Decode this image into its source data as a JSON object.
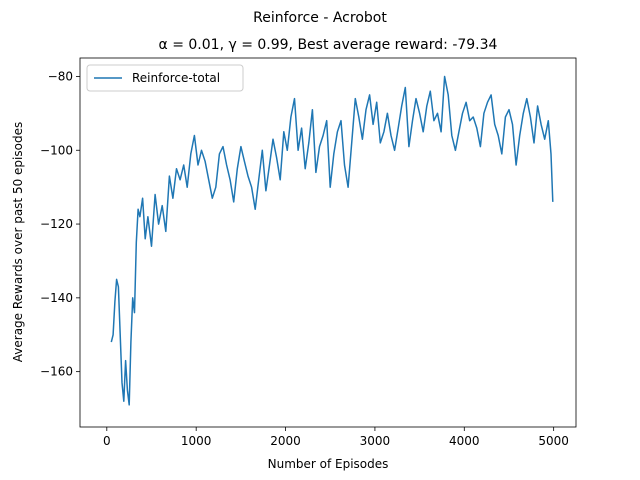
{
  "chart_data": {
    "type": "line",
    "suptitle": "Reinforce - Acrobot",
    "title": "α = 0.01, γ = 0.99,  Best average reward: -79.34",
    "xlabel": "Number of Episodes",
    "ylabel": "Average Rewards over past 50 episodes",
    "xlim": [
      -300,
      5250
    ],
    "ylim": [
      -175,
      -75
    ],
    "xticks": [
      0,
      1000,
      2000,
      3000,
      4000,
      5000
    ],
    "yticks": [
      -160,
      -140,
      -120,
      -100,
      -80
    ],
    "xtick_labels": [
      "0",
      "1000",
      "2000",
      "3000",
      "4000",
      "5000"
    ],
    "ytick_labels": [
      "−160",
      "−140",
      "−120",
      "−100",
      "−80"
    ],
    "grid": false,
    "legend_position": "top-left",
    "series": [
      {
        "name": "Reinforce-total",
        "color": "#1f77b4",
        "x": [
          50,
          70,
          90,
          110,
          130,
          150,
          170,
          190,
          210,
          230,
          250,
          270,
          290,
          310,
          330,
          350,
          370,
          400,
          430,
          460,
          500,
          540,
          580,
          620,
          660,
          700,
          740,
          780,
          820,
          860,
          900,
          940,
          980,
          1020,
          1060,
          1100,
          1140,
          1180,
          1220,
          1260,
          1300,
          1340,
          1380,
          1420,
          1460,
          1500,
          1540,
          1580,
          1620,
          1660,
          1700,
          1740,
          1780,
          1820,
          1860,
          1900,
          1940,
          1980,
          2020,
          2060,
          2100,
          2140,
          2180,
          2220,
          2260,
          2300,
          2340,
          2380,
          2420,
          2460,
          2500,
          2540,
          2580,
          2620,
          2660,
          2700,
          2740,
          2780,
          2820,
          2860,
          2900,
          2940,
          2980,
          3020,
          3060,
          3100,
          3140,
          3180,
          3220,
          3260,
          3300,
          3340,
          3380,
          3420,
          3460,
          3500,
          3540,
          3580,
          3620,
          3660,
          3700,
          3740,
          3780,
          3820,
          3860,
          3900,
          3940,
          3980,
          4020,
          4060,
          4100,
          4140,
          4180,
          4220,
          4260,
          4300,
          4340,
          4380,
          4420,
          4460,
          4500,
          4540,
          4580,
          4620,
          4660,
          4700,
          4740,
          4780,
          4820,
          4860,
          4900,
          4940,
          4970,
          4990
        ],
        "y": [
          -152,
          -150,
          -141,
          -135,
          -137,
          -150,
          -163,
          -168,
          -157,
          -165,
          -169,
          -152,
          -140,
          -144,
          -125,
          -116,
          -118,
          -113,
          -124,
          -118,
          -126,
          -112,
          -120,
          -115,
          -122,
          -107,
          -113,
          -105,
          -108,
          -104,
          -110,
          -101,
          -96,
          -104,
          -100,
          -103,
          -108,
          -113,
          -110,
          -101,
          -99,
          -104,
          -108,
          -114,
          -105,
          -99,
          -103,
          -107,
          -110,
          -116,
          -108,
          -100,
          -111,
          -104,
          -97,
          -102,
          -108,
          -95,
          -100,
          -91,
          -86,
          -100,
          -94,
          -105,
          -98,
          -89,
          -106,
          -99,
          -96,
          -92,
          -110,
          -101,
          -95,
          -92,
          -104,
          -110,
          -98,
          -86,
          -91,
          -97,
          -89,
          -85,
          -93,
          -87,
          -98,
          -95,
          -90,
          -96,
          -100,
          -94,
          -88,
          -83,
          -99,
          -92,
          -86,
          -90,
          -95,
          -88,
          -84,
          -92,
          -90,
          -95,
          -80,
          -85,
          -96,
          -100,
          -95,
          -90,
          -87,
          -92,
          -91,
          -94,
          -99,
          -90,
          -87,
          -85,
          -93,
          -96,
          -101,
          -91,
          -89,
          -93,
          -104,
          -96,
          -90,
          -86,
          -91,
          -98,
          -88,
          -93,
          -97,
          -92,
          -101,
          -114
        ]
      }
    ]
  }
}
